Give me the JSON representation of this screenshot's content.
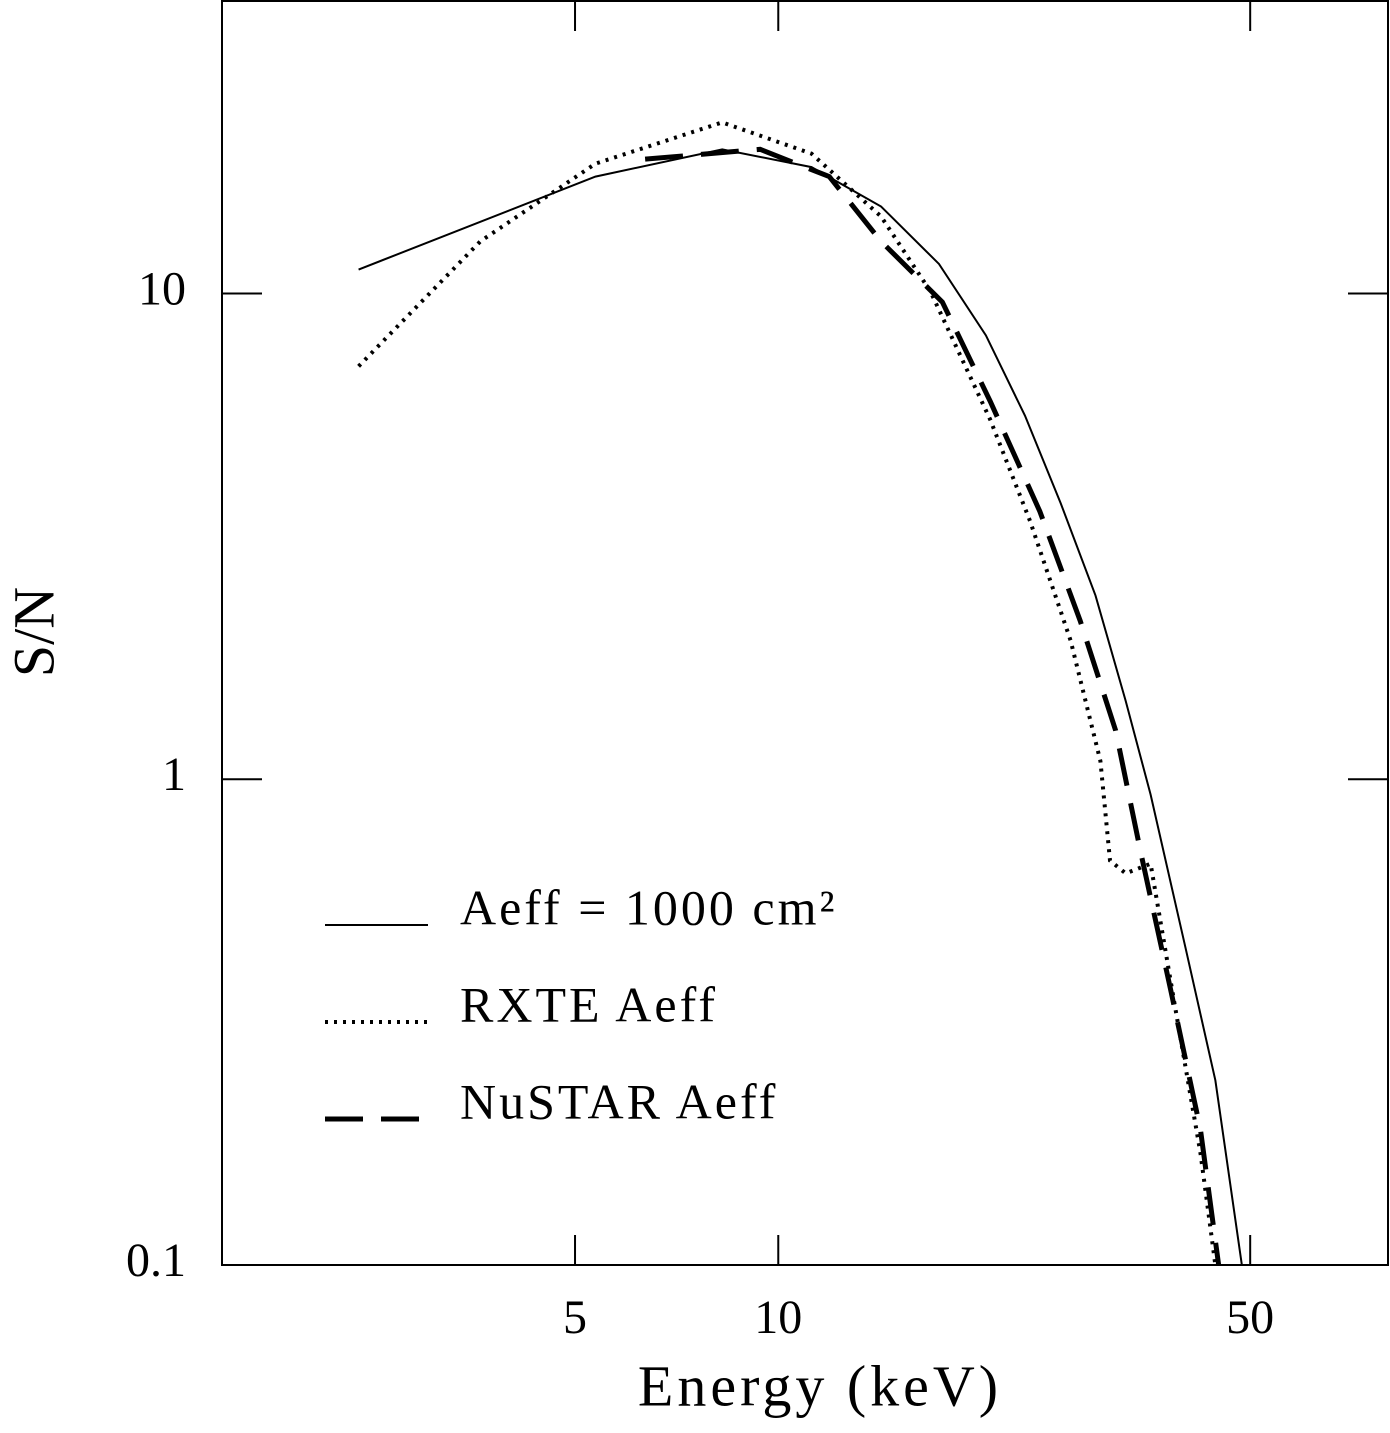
{
  "chart_data": {
    "type": "line",
    "xlabel": "Energy (keV)",
    "ylabel": "S/N",
    "xscale": "log",
    "yscale": "log",
    "xlim": [
      1.5,
      80
    ],
    "ylim": [
      0.1,
      40
    ],
    "xticks": [
      5,
      10,
      50
    ],
    "yticks": [
      0.1,
      1,
      10
    ],
    "legend": "lower left",
    "series": [
      {
        "name": "Aeff = 1000 cm²",
        "color": "#000000",
        "dash": "solid",
        "width": 2,
        "x": [
          2.39,
          5.36,
          8.26,
          11.2,
          14.2,
          17.3,
          20.3,
          23.2,
          26.2,
          29.5,
          32.7,
          35.6,
          40.1,
          44.4,
          48.6
        ],
        "values": [
          11.2,
          17.4,
          19.8,
          18.2,
          15.1,
          11.5,
          8.2,
          5.6,
          3.7,
          2.39,
          1.45,
          0.93,
          0.45,
          0.24,
          0.1
        ]
      },
      {
        "name": "RXTE Aeff",
        "color": "#000000",
        "dash": "dotted",
        "width": 4,
        "x": [
          2.39,
          3.62,
          5.36,
          8.26,
          11.2,
          14.2,
          16.8,
          20.6,
          23.6,
          27.1,
          30.0,
          31.0,
          32.7,
          35.6,
          38.7,
          42.2,
          44.4
        ],
        "values": [
          7.08,
          12.8,
          18.5,
          22.5,
          19.4,
          14.4,
          10.1,
          5.5,
          3.4,
          1.93,
          1.09,
          0.68,
          0.64,
          0.67,
          0.34,
          0.17,
          0.1
        ]
      },
      {
        "name": "NuSTAR Aeff",
        "color": "#000000",
        "dash": "dashed",
        "width": 5,
        "x": [
          6.35,
          9.4,
          11.9,
          14.2,
          17.5,
          20.6,
          24.4,
          28.0,
          31.6,
          34.4,
          38.1,
          42.2,
          44.9
        ],
        "values": [
          18.9,
          19.8,
          17.4,
          12.8,
          9.6,
          6.0,
          3.56,
          2.12,
          1.26,
          0.71,
          0.37,
          0.19,
          0.1
        ]
      }
    ]
  }
}
